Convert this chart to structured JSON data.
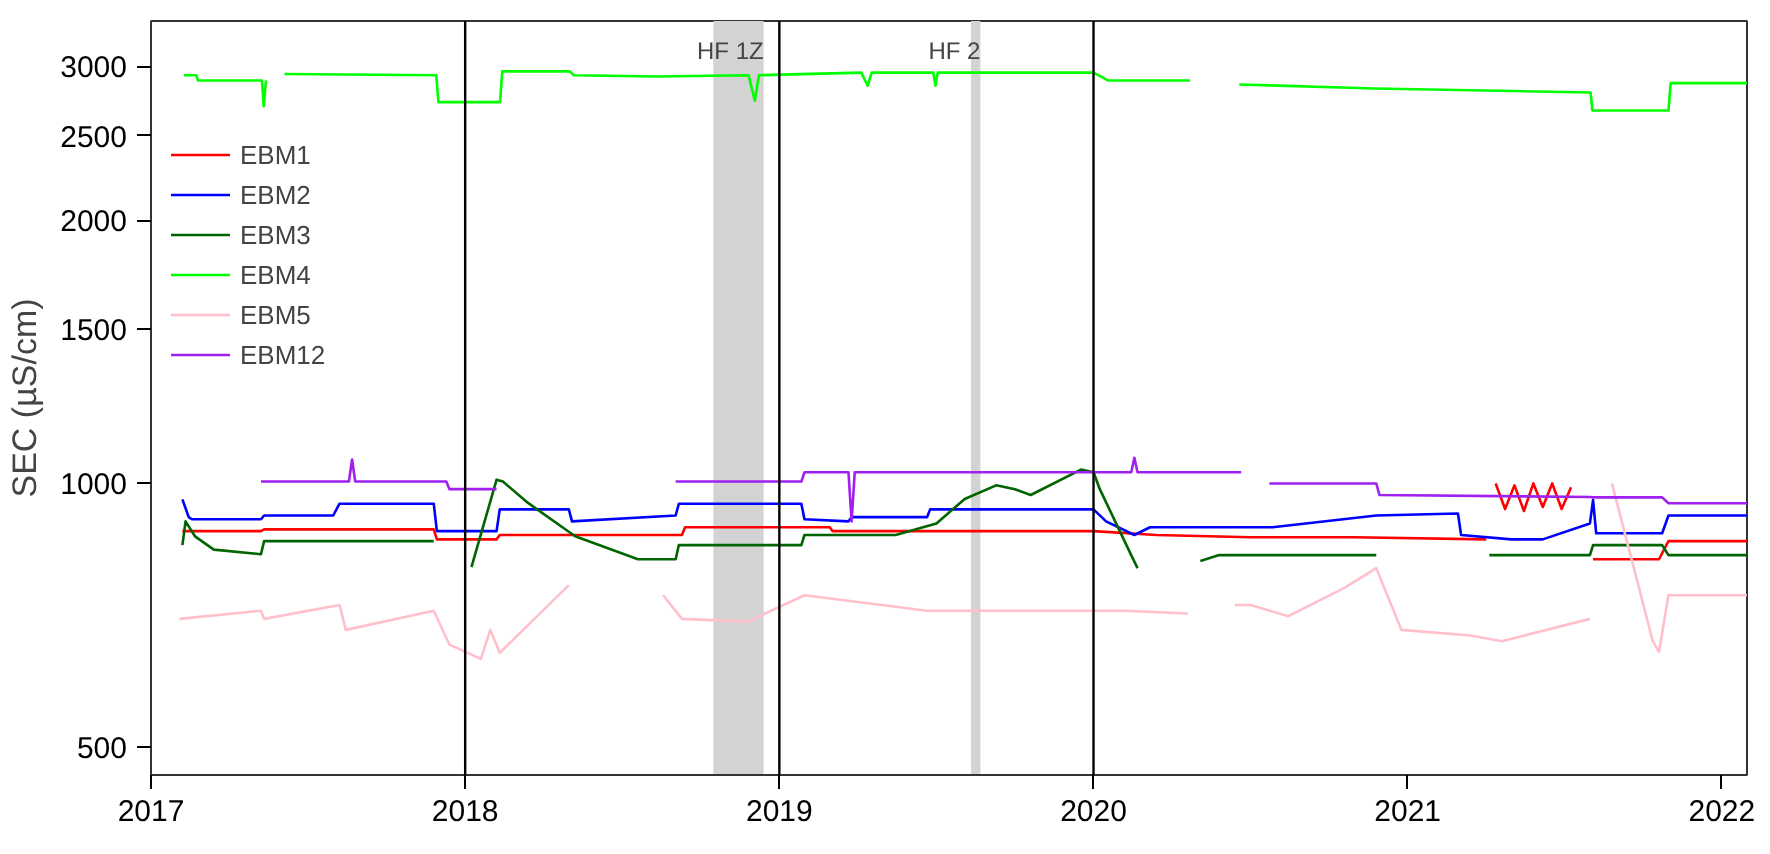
{
  "chart_data": {
    "type": "line",
    "ylabel": "SEC (µS/cm)",
    "log": "y",
    "xlim": [
      2017.0,
      2022.08
    ],
    "ylim": [
      464,
      3380
    ],
    "xticks": [
      2017,
      2018,
      2019,
      2020,
      2021,
      2022
    ],
    "yticks": [
      500,
      1000,
      1500,
      2000,
      2500,
      3000
    ],
    "grid": false,
    "legend": "top left",
    "line_style": "solid",
    "marker": "none",
    "ref_lines": [
      {
        "axis": "x",
        "value": 2018,
        "color": "#000000"
      },
      {
        "axis": "x",
        "value": 2019,
        "color": "#000000"
      },
      {
        "axis": "x",
        "value": 2020,
        "color": "#000000"
      }
    ],
    "bands": [
      {
        "axis": "x",
        "from": 2018.79,
        "to": 2018.95,
        "label": "HF 1Z",
        "color": "#d3d3d3"
      },
      {
        "axis": "x",
        "from": 2019.61,
        "to": 2019.64,
        "label": "HF 2",
        "color": "#d3d3d3"
      }
    ],
    "series": [
      {
        "name": "EBM1",
        "color": "#ff0000",
        "x": [
          2017.1,
          2017.35,
          2017.36,
          2017.9,
          2017.91,
          2018.1,
          2018.11,
          2018.69,
          2018.7,
          2019.16,
          2019.17,
          2020.0,
          2020.2,
          2020.5,
          2020.83,
          2021.25,
          2021.27,
          2021.28,
          2021.31,
          2021.34,
          2021.37,
          2021.4,
          2021.43,
          2021.46,
          2021.49,
          2021.52,
          2021.54,
          2021.55,
          2021.58,
          2021.59,
          2021.8,
          2021.83,
          2022.08
        ],
        "values": [
          882,
          882,
          886,
          886,
          863,
          863,
          873,
          873,
          891,
          891,
          882,
          882,
          873,
          868,
          868,
          863,
          null,
          1000,
          935,
          995,
          930,
          1000,
          940,
          1000,
          935,
          990,
          null,
          null,
          null,
          819,
          819,
          859,
          859
        ]
      },
      {
        "name": "EBM2",
        "color": "#0000ff",
        "x": [
          2017.1,
          2017.12,
          2017.13,
          2017.35,
          2017.36,
          2017.58,
          2017.6,
          2017.9,
          2017.91,
          2018.1,
          2018.11,
          2018.33,
          2018.34,
          2018.67,
          2018.68,
          2019.07,
          2019.08,
          2019.22,
          2019.23,
          2019.47,
          2019.48,
          2020.0,
          2020.04,
          2020.13,
          2020.18,
          2020.57,
          2020.9,
          2021.16,
          2021.17,
          2021.33,
          2021.43,
          2021.58,
          2021.59,
          2021.6,
          2021.81,
          2021.83,
          2022.08
        ],
        "values": [
          959,
          915,
          910,
          910,
          919,
          919,
          948,
          948,
          882,
          882,
          934,
          934,
          905,
          919,
          948,
          948,
          910,
          905,
          915,
          915,
          934,
          934,
          905,
          873,
          891,
          891,
          919,
          924,
          873,
          863,
          863,
          900,
          957,
          877,
          877,
          919,
          919
        ]
      },
      {
        "name": "EBM3",
        "color": "#006400",
        "x": [
          2017.1,
          2017.11,
          2017.14,
          2017.2,
          2017.35,
          2017.36,
          2017.9,
          2017.91,
          2018.02,
          2018.06,
          2018.1,
          2018.12,
          2018.2,
          2018.35,
          2018.55,
          2018.67,
          2018.68,
          2019.07,
          2019.08,
          2019.37,
          2019.5,
          2019.59,
          2019.69,
          2019.75,
          2019.8,
          2019.96,
          2020.0,
          2020.02,
          2020.12,
          2020.14,
          2020.15,
          2020.34,
          2020.4,
          2020.9,
          2020.91,
          2021.26,
          2021.58,
          2021.59,
          2021.81,
          2021.83,
          2022.08
        ],
        "values": [
          850,
          905,
          870,
          840,
          830,
          859,
          859,
          null,
          802,
          900,
          1010,
          1005,
          950,
          870,
          819,
          819,
          850,
          850,
          873,
          873,
          900,
          960,
          995,
          985,
          970,
          1037,
          1030,
          985,
          828,
          800,
          null,
          815,
          828,
          828,
          null,
          828,
          828,
          850,
          850,
          828,
          828
        ]
      },
      {
        "name": "EBM4",
        "color": "#00ff00",
        "x": [
          2017.105,
          2017.144,
          2017.15,
          2017.353,
          2017.359,
          2017.366,
          2017.38,
          2017.425,
          2017.908,
          2017.915,
          2018.111,
          2018.118,
          2018.333,
          2018.346,
          2018.608,
          2018.902,
          2018.922,
          2018.935,
          2019.261,
          2019.281,
          2019.294,
          2019.49,
          2019.497,
          2019.504,
          2020.0,
          2020.046,
          2020.307,
          2020.38,
          2020.464,
          2020.895,
          2021.582,
          2021.588,
          2021.83,
          2021.837,
          2022.08
        ],
        "values": [
          2930,
          2930,
          2890,
          2890,
          2700,
          2890,
          null,
          2940,
          2930,
          2730,
          2730,
          2960,
          2960,
          2930,
          2920,
          2930,
          2740,
          2930,
          2950,
          2850,
          2950,
          2950,
          2850,
          2950,
          2950,
          2890,
          2890,
          null,
          2860,
          2830,
          2800,
          2670,
          2670,
          2870,
          2870
        ]
      },
      {
        "name": "EBM5",
        "color": "#ffc0cb",
        "x": [
          2017.09,
          2017.35,
          2017.36,
          2017.6,
          2017.62,
          2017.9,
          2017.95,
          2018.05,
          2018.08,
          2018.11,
          2018.33,
          2018.5,
          2018.63,
          2018.69,
          2018.9,
          2019.08,
          2019.47,
          2019.98,
          2020.1,
          2020.3,
          2020.34,
          2020.45,
          2020.5,
          2020.62,
          2020.8,
          2020.9,
          2020.98,
          2021.2,
          2021.3,
          2021.58,
          2021.6,
          2021.65,
          2021.72,
          2021.78,
          2021.8,
          2021.83,
          2022.08
        ],
        "values": [
          700,
          715,
          700,
          726,
          680,
          715,
          654,
          630,
          680,
          640,
          765,
          null,
          745,
          700,
          695,
          745,
          715,
          715,
          715,
          710,
          null,
          726,
          726,
          705,
          760,
          800,
          680,
          670,
          660,
          700,
          null,
          1000,
          800,
          660,
          642,
          745,
          745
        ]
      },
      {
        "name": "EBM12",
        "color": "#a020f0",
        "x": [
          2017.35,
          2017.63,
          2017.64,
          2017.65,
          2017.94,
          2017.95,
          2018.1,
          2018.11,
          2018.67,
          2019.07,
          2019.08,
          2019.22,
          2019.23,
          2019.24,
          2020.0,
          2020.12,
          2020.13,
          2020.14,
          2020.47,
          2020.48,
          2020.56,
          2020.57,
          2020.9,
          2020.91,
          2021.58,
          2021.59,
          2021.81,
          2021.83,
          2022.08
        ],
        "values": [
          1005,
          1005,
          1065,
          1005,
          1005,
          985,
          985,
          null,
          1005,
          1005,
          1030,
          1030,
          905,
          1030,
          1030,
          1030,
          1070,
          1030,
          1030,
          null,
          1000,
          1000,
          1000,
          970,
          965,
          964,
          964,
          949,
          949
        ]
      }
    ]
  }
}
